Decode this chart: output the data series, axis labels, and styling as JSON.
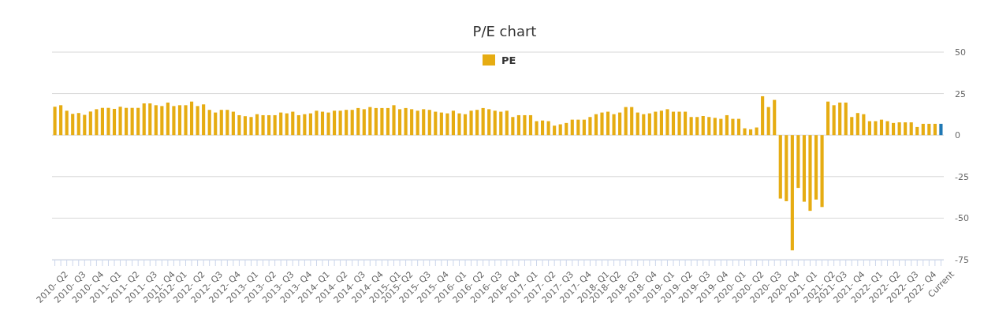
{
  "chart_data": {
    "type": "bar",
    "title": "P/E chart",
    "categories": [
      "2010- Q2",
      null,
      null,
      "2010- Q3",
      null,
      null,
      "2010- Q4",
      null,
      null,
      "2011- Q1",
      null,
      null,
      "2011- Q2",
      null,
      null,
      "2011- Q3",
      null,
      null,
      "2011- Q4",
      null,
      "2012- Q1",
      null,
      null,
      "2012- Q2",
      null,
      null,
      "2012- Q3",
      null,
      null,
      "2012- Q4",
      null,
      null,
      "2013- Q1",
      null,
      null,
      "2013- Q2",
      null,
      null,
      "2013- Q3",
      null,
      null,
      "2013- Q4",
      null,
      null,
      "2014- Q1",
      null,
      null,
      "2014- Q2",
      null,
      null,
      "2014- Q3",
      null,
      null,
      "2014- Q4",
      null,
      null,
      "2015- Q1",
      null,
      "2015- Q2",
      null,
      null,
      "2015- Q3",
      null,
      null,
      "2015- Q4",
      null,
      null,
      "2016- Q1",
      null,
      null,
      "2016- Q2",
      null,
      null,
      "2016- Q3",
      null,
      null,
      "2016- Q4",
      null,
      null,
      "2017- Q1",
      null,
      null,
      "2017- Q2",
      null,
      null,
      "2017- Q3",
      null,
      null,
      "2017- Q4",
      null,
      null,
      "2018- Q1",
      null,
      "2018- Q2",
      null,
      null,
      "2018- Q3",
      null,
      null,
      "2018- Q4",
      null,
      null,
      "2019- Q1",
      null,
      null,
      "2019- Q2",
      null,
      null,
      "2019- Q3",
      null,
      null,
      "2019- Q4",
      null,
      null,
      "2020- Q1",
      null,
      null,
      "2020- Q2",
      null,
      null,
      "2020- Q3",
      null,
      null,
      "2020- Q4",
      null,
      null,
      "2021- Q1",
      null,
      null,
      "2021- Q2",
      null,
      "2021- Q3",
      null,
      null,
      "2021- Q4",
      null,
      null,
      "2022- Q1",
      null,
      null,
      "2022- Q2",
      null,
      null,
      "2022- Q3",
      null,
      null,
      "2022- Q4",
      null,
      null,
      "Current"
    ],
    "series": [
      {
        "name": "PE",
        "color": "#e6ac12",
        "values": [
          17.1,
          18.0,
          14.7,
          12.8,
          13.3,
          12.2,
          14.2,
          15.6,
          16.4,
          16.4,
          15.8,
          17.1,
          16.4,
          16.4,
          16.4,
          19.1,
          19.1,
          18.0,
          17.5,
          19.6,
          17.5,
          18.0,
          18.0,
          20.2,
          17.5,
          18.5,
          15.2,
          13.6,
          15.2,
          15.2,
          14.1,
          12.0,
          11.4,
          10.9,
          12.6,
          12.0,
          12.0,
          12.0,
          13.6,
          13.1,
          14.1,
          12.0,
          12.6,
          13.1,
          14.7,
          14.1,
          13.6,
          14.7,
          14.7,
          15.2,
          15.2,
          16.3,
          15.6,
          16.9,
          16.3,
          16.3,
          16.3,
          18.0,
          15.6,
          16.3,
          15.6,
          14.7,
          15.6,
          15.2,
          14.1,
          13.6,
          13.1,
          14.7,
          13.1,
          12.6,
          14.7,
          15.2,
          16.3,
          15.6,
          14.7,
          14.1,
          14.7,
          10.9,
          12.0,
          12.0,
          12.0,
          8.4,
          8.8,
          8.4,
          5.7,
          6.5,
          7.3,
          9.3,
          9.3,
          9.3,
          10.9,
          12.6,
          13.6,
          14.1,
          12.6,
          13.6,
          16.9,
          16.9,
          13.6,
          12.6,
          13.1,
          14.1,
          14.7,
          15.6,
          14.1,
          14.1,
          14.1,
          10.9,
          10.9,
          11.5,
          10.9,
          10.4,
          9.8,
          12.0,
          9.8,
          9.8,
          4.1,
          3.5,
          4.6,
          23.4,
          16.9,
          21.2,
          -38.2,
          -39.8,
          -69.4,
          -31.8,
          -40.1,
          -45.6,
          -38.8,
          -43.3,
          20.2,
          18.0,
          19.6,
          19.6,
          10.9,
          13.3,
          12.6,
          8.4,
          8.4,
          9.3,
          8.4,
          7.3,
          7.7,
          7.7,
          7.7,
          4.9,
          6.8,
          6.8,
          6.8,
          6.8
        ],
        "colors": [
          "#e6ac12",
          "#e6ac12",
          "#e6ac12",
          "#e6ac12",
          "#e6ac12",
          "#e6ac12",
          "#e6ac12",
          "#e6ac12",
          "#e6ac12",
          "#e6ac12",
          "#e6ac12",
          "#e6ac12",
          "#e6ac12",
          "#e6ac12",
          "#e6ac12",
          "#e6ac12",
          "#e6ac12",
          "#e6ac12",
          "#e6ac12",
          "#e6ac12",
          "#e6ac12",
          "#e6ac12",
          "#e6ac12",
          "#e6ac12",
          "#e6ac12",
          "#e6ac12",
          "#e6ac12",
          "#e6ac12",
          "#e6ac12",
          "#e6ac12",
          "#e6ac12",
          "#e6ac12",
          "#e6ac12",
          "#e6ac12",
          "#e6ac12",
          "#e6ac12",
          "#e6ac12",
          "#e6ac12",
          "#e6ac12",
          "#e6ac12",
          "#e6ac12",
          "#e6ac12",
          "#e6ac12",
          "#e6ac12",
          "#e6ac12",
          "#e6ac12",
          "#e6ac12",
          "#e6ac12",
          "#e6ac12",
          "#e6ac12",
          "#e6ac12",
          "#e6ac12",
          "#e6ac12",
          "#e6ac12",
          "#e6ac12",
          "#e6ac12",
          "#e6ac12",
          "#e6ac12",
          "#e6ac12",
          "#e6ac12",
          "#e6ac12",
          "#e6ac12",
          "#e6ac12",
          "#e6ac12",
          "#e6ac12",
          "#e6ac12",
          "#e6ac12",
          "#e6ac12",
          "#e6ac12",
          "#e6ac12",
          "#e6ac12",
          "#e6ac12",
          "#e6ac12",
          "#e6ac12",
          "#e6ac12",
          "#e6ac12",
          "#e6ac12",
          "#e6ac12",
          "#e6ac12",
          "#e6ac12",
          "#e6ac12",
          "#e6ac12",
          "#e6ac12",
          "#e6ac12",
          "#e6ac12",
          "#e6ac12",
          "#e6ac12",
          "#e6ac12",
          "#e6ac12",
          "#e6ac12",
          "#e6ac12",
          "#e6ac12",
          "#e6ac12",
          "#e6ac12",
          "#e6ac12",
          "#e6ac12",
          "#e6ac12",
          "#e6ac12",
          "#e6ac12",
          "#e6ac12",
          "#e6ac12",
          "#e6ac12",
          "#e6ac12",
          "#e6ac12",
          "#e6ac12",
          "#e6ac12",
          "#e6ac12",
          "#e6ac12",
          "#e6ac12",
          "#e6ac12",
          "#e6ac12",
          "#e6ac12",
          "#e6ac12",
          "#e6ac12",
          "#e6ac12",
          "#e6ac12",
          "#e6ac12",
          "#e6ac12",
          "#e6ac12",
          "#e6ac12",
          "#e6ac12",
          "#e6ac12",
          "#e6ac12",
          "#e6ac12",
          "#e6ac12",
          "#e6ac12",
          "#e6ac12",
          "#e6ac12",
          "#e6ac12",
          "#e6ac12",
          "#e6ac12",
          "#e6ac12",
          "#e6ac12",
          "#e6ac12",
          "#e6ac12",
          "#e6ac12",
          "#e6ac12",
          "#e6ac12",
          "#e6ac12",
          "#e6ac12",
          "#e6ac12",
          "#e6ac12",
          "#e6ac12",
          "#e6ac12",
          "#e6ac12",
          "#e6ac12",
          "#e6ac12",
          "#e6ac12",
          "#e6ac12",
          "#1f78b4"
        ]
      }
    ],
    "ylim": [
      -75,
      50
    ],
    "yticks": [
      -75,
      -50,
      -25,
      0,
      25,
      50
    ],
    "grid": "y",
    "legend": "top"
  }
}
